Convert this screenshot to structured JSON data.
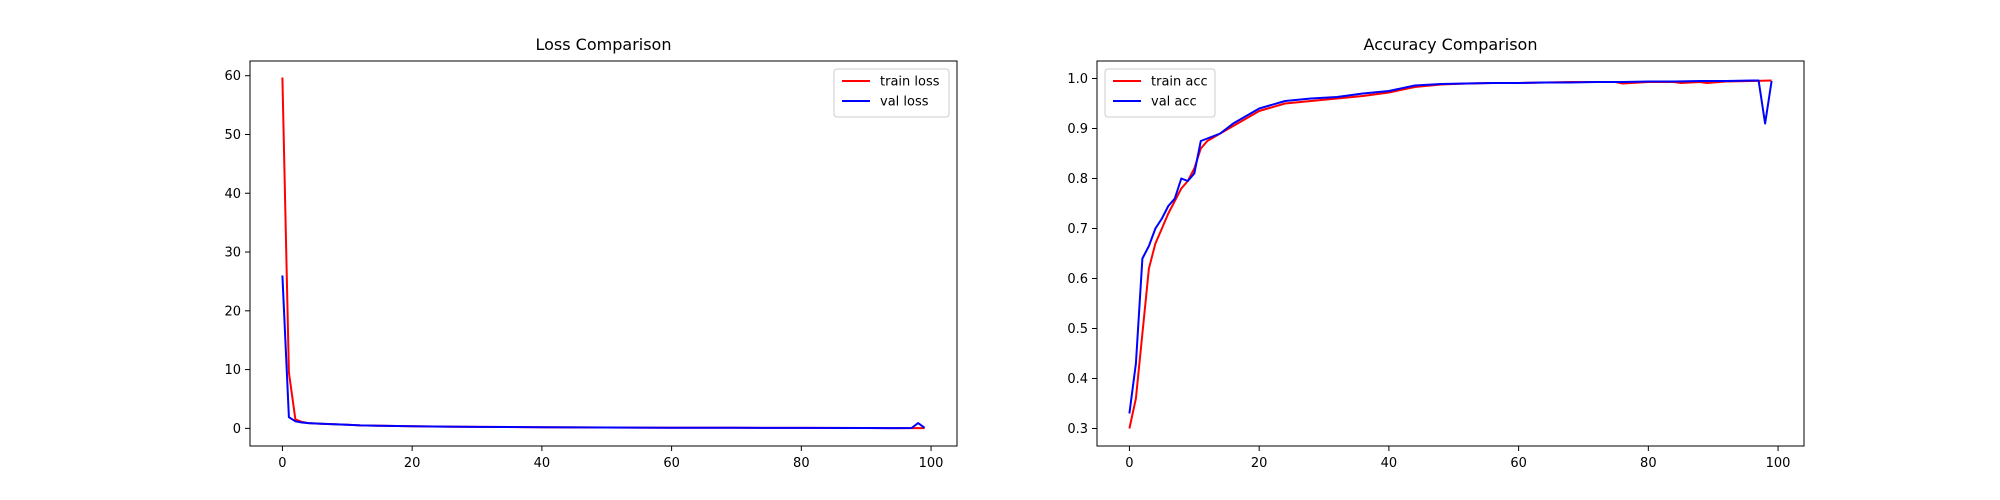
{
  "chart_data": [
    {
      "type": "line",
      "title": "Loss Comparison",
      "xlabel": "",
      "ylabel": "",
      "xlim": [
        -5,
        104
      ],
      "ylim": [
        -3,
        62.5
      ],
      "xticks": [
        0,
        20,
        40,
        60,
        80,
        100
      ],
      "yticks": [
        0,
        10,
        20,
        30,
        40,
        50,
        60
      ],
      "grid": false,
      "legend_position": "upper right",
      "series": [
        {
          "name": "train loss",
          "color": "#ff0000",
          "x": [
            0,
            1,
            2,
            3,
            4,
            6,
            8,
            10,
            12,
            15,
            20,
            25,
            30,
            40,
            50,
            60,
            70,
            80,
            90,
            95,
            97,
            98,
            99
          ],
          "y": [
            59.7,
            9.5,
            1.5,
            1.1,
            0.9,
            0.8,
            0.7,
            0.6,
            0.5,
            0.45,
            0.35,
            0.3,
            0.25,
            0.2,
            0.15,
            0.12,
            0.1,
            0.08,
            0.06,
            0.05,
            0.05,
            0.05,
            0.05
          ]
        },
        {
          "name": "val loss",
          "color": "#0000ff",
          "x": [
            0,
            1,
            2,
            3,
            4,
            6,
            8,
            10,
            12,
            15,
            20,
            25,
            30,
            40,
            50,
            60,
            70,
            80,
            90,
            95,
            97,
            98,
            99
          ],
          "y": [
            26,
            1.9,
            1.2,
            1.0,
            0.9,
            0.8,
            0.7,
            0.6,
            0.5,
            0.45,
            0.35,
            0.3,
            0.25,
            0.2,
            0.15,
            0.12,
            0.1,
            0.08,
            0.06,
            0.05,
            0.06,
            0.9,
            0.1
          ]
        }
      ]
    },
    {
      "type": "line",
      "title": "Accuracy Comparison",
      "xlabel": "",
      "ylabel": "",
      "xlim": [
        -5,
        104
      ],
      "ylim": [
        0.265,
        1.035
      ],
      "xticks": [
        0,
        20,
        40,
        60,
        80,
        100
      ],
      "yticks": [
        0.3,
        0.4,
        0.5,
        0.6,
        0.7,
        0.8,
        0.9,
        1.0
      ],
      "ytick_labels": [
        "0.3",
        "0.4",
        "0.5",
        "0.6",
        "0.7",
        "0.8",
        "0.9",
        "1.0"
      ],
      "grid": false,
      "legend_position": "upper left",
      "series": [
        {
          "name": "train acc",
          "color": "#ff0000",
          "x": [
            0,
            1,
            2,
            3,
            4,
            5,
            6,
            7,
            8,
            9,
            10,
            11,
            12,
            14,
            16,
            18,
            20,
            24,
            28,
            32,
            36,
            40,
            44,
            48,
            52,
            56,
            60,
            64,
            68,
            72,
            75,
            76,
            80,
            84,
            85,
            88,
            89,
            92,
            96,
            99
          ],
          "y": [
            0.3,
            0.36,
            0.49,
            0.62,
            0.67,
            0.7,
            0.73,
            0.755,
            0.78,
            0.795,
            0.82,
            0.86,
            0.875,
            0.89,
            0.905,
            0.92,
            0.935,
            0.95,
            0.955,
            0.96,
            0.965,
            0.972,
            0.983,
            0.988,
            0.99,
            0.991,
            0.991,
            0.992,
            0.993,
            0.993,
            0.993,
            0.99,
            0.993,
            0.993,
            0.991,
            0.993,
            0.991,
            0.994,
            0.995,
            0.996
          ]
        },
        {
          "name": "val acc",
          "color": "#0000ff",
          "x": [
            0,
            1,
            2,
            3,
            4,
            5,
            6,
            7,
            8,
            9,
            10,
            11,
            12,
            14,
            16,
            18,
            20,
            24,
            28,
            32,
            36,
            40,
            44,
            48,
            52,
            56,
            60,
            64,
            68,
            72,
            76,
            80,
            84,
            88,
            92,
            96,
            97,
            98,
            99
          ],
          "y": [
            0.33,
            0.43,
            0.64,
            0.665,
            0.7,
            0.72,
            0.745,
            0.76,
            0.8,
            0.795,
            0.81,
            0.875,
            0.88,
            0.89,
            0.91,
            0.925,
            0.94,
            0.955,
            0.96,
            0.963,
            0.97,
            0.975,
            0.986,
            0.989,
            0.99,
            0.991,
            0.991,
            0.992,
            0.992,
            0.993,
            0.993,
            0.994,
            0.994,
            0.995,
            0.995,
            0.996,
            0.996,
            0.91,
            0.995
          ]
        }
      ]
    }
  ]
}
